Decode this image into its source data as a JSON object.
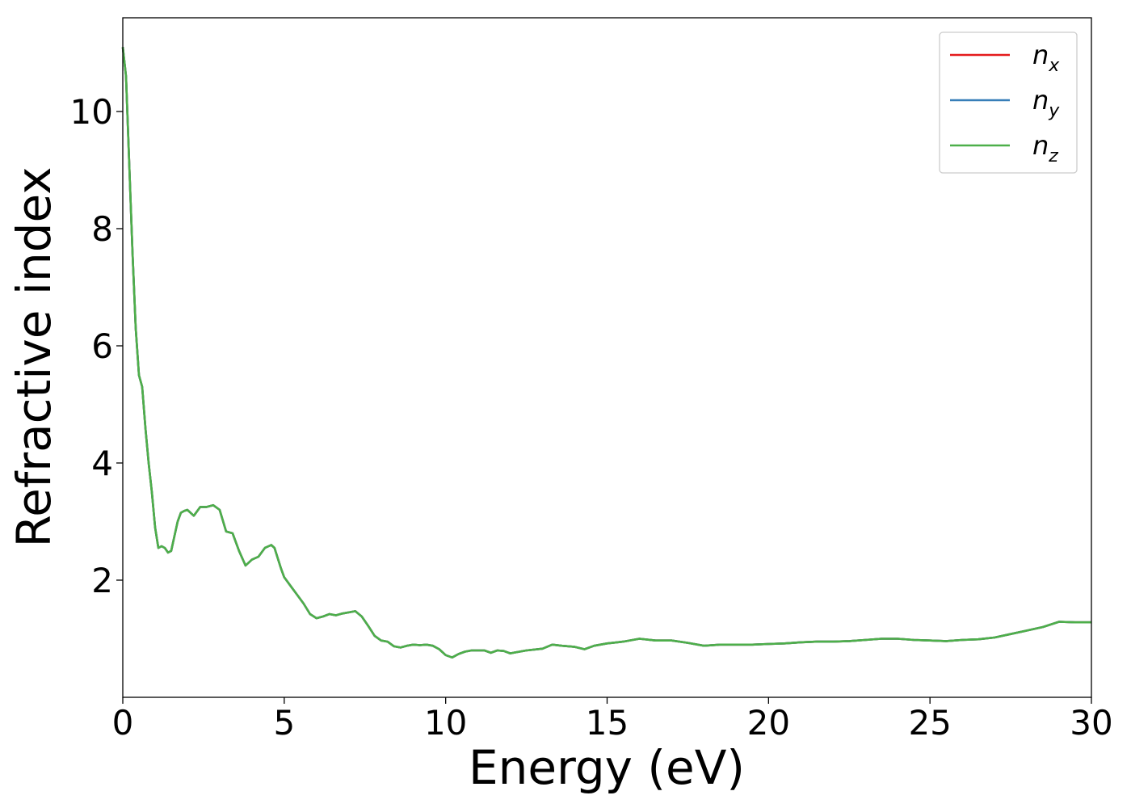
{
  "chart_data": {
    "type": "line",
    "xlabel": "Energy (eV)",
    "ylabel": "Refractive index",
    "xlim": [
      0,
      30
    ],
    "ylim": [
      0.0,
      11.6
    ],
    "xticks": [
      0,
      5,
      10,
      15,
      20,
      25,
      30
    ],
    "xtick_labels": [
      "0",
      "5",
      "10",
      "15",
      "20",
      "25",
      "30"
    ],
    "yticks": [
      2,
      4,
      6,
      8,
      10
    ],
    "ytick_labels": [
      "2",
      "4",
      "6",
      "8",
      "10"
    ],
    "grid": false,
    "legend_position": "top-right",
    "colors": {
      "n_x": "#e41a1c",
      "n_y": "#377eb8",
      "n_z": "#4daf4a"
    },
    "x": [
      0,
      0.1,
      0.2,
      0.3,
      0.4,
      0.5,
      0.6,
      0.7,
      0.8,
      0.9,
      1.0,
      1.1,
      1.2,
      1.3,
      1.4,
      1.5,
      1.6,
      1.7,
      1.8,
      1.9,
      2.0,
      2.2,
      2.4,
      2.6,
      2.8,
      3.0,
      3.2,
      3.4,
      3.6,
      3.8,
      4.0,
      4.2,
      4.4,
      4.6,
      4.7,
      4.9,
      5.0,
      5.2,
      5.4,
      5.6,
      5.8,
      6.0,
      6.2,
      6.4,
      6.6,
      6.8,
      7.0,
      7.2,
      7.4,
      7.6,
      7.8,
      8.0,
      8.2,
      8.4,
      8.6,
      8.8,
      9.0,
      9.2,
      9.4,
      9.6,
      9.8,
      10.0,
      10.2,
      10.4,
      10.6,
      10.8,
      11.0,
      11.2,
      11.4,
      11.6,
      11.8,
      12.0,
      12.5,
      13.0,
      13.3,
      13.6,
      14.0,
      14.3,
      14.6,
      15.0,
      15.5,
      16.0,
      16.5,
      17.0,
      17.5,
      18.0,
      18.5,
      19.0,
      19.5,
      20.0,
      20.5,
      21.0,
      21.5,
      22.0,
      22.5,
      23.0,
      23.5,
      24.0,
      24.5,
      25.0,
      25.5,
      26.0,
      26.5,
      27.0,
      27.5,
      28.0,
      28.5,
      29.0,
      29.5,
      30.0
    ],
    "series": [
      {
        "name": "n_x",
        "label_base": "n",
        "label_sub": "x",
        "values": [
          11.1,
          10.6,
          9.1,
          7.6,
          6.3,
          5.5,
          5.3,
          4.6,
          4.0,
          3.5,
          2.9,
          2.55,
          2.58,
          2.55,
          2.47,
          2.5,
          2.75,
          3.0,
          3.15,
          3.18,
          3.2,
          3.1,
          3.25,
          3.25,
          3.28,
          3.2,
          2.83,
          2.8,
          2.5,
          2.25,
          2.35,
          2.4,
          2.55,
          2.6,
          2.55,
          2.2,
          2.05,
          1.9,
          1.75,
          1.6,
          1.42,
          1.35,
          1.38,
          1.42,
          1.4,
          1.43,
          1.45,
          1.47,
          1.38,
          1.22,
          1.05,
          0.97,
          0.95,
          0.87,
          0.85,
          0.88,
          0.9,
          0.89,
          0.9,
          0.88,
          0.82,
          0.72,
          0.68,
          0.74,
          0.78,
          0.8,
          0.8,
          0.8,
          0.76,
          0.8,
          0.79,
          0.75,
          0.8,
          0.83,
          0.9,
          0.88,
          0.86,
          0.82,
          0.88,
          0.92,
          0.95,
          1.0,
          0.97,
          0.97,
          0.93,
          0.88,
          0.9,
          0.9,
          0.9,
          0.91,
          0.92,
          0.94,
          0.95,
          0.95,
          0.96,
          0.98,
          1.0,
          1.0,
          0.98,
          0.97,
          0.96,
          0.98,
          0.99,
          1.02,
          1.08,
          1.14,
          1.2,
          1.29,
          1.28,
          1.28
        ]
      },
      {
        "name": "n_y",
        "label_base": "n",
        "label_sub": "y",
        "values": [
          11.1,
          10.6,
          9.1,
          7.6,
          6.3,
          5.5,
          5.3,
          4.6,
          4.0,
          3.5,
          2.9,
          2.55,
          2.58,
          2.55,
          2.47,
          2.5,
          2.75,
          3.0,
          3.15,
          3.18,
          3.2,
          3.1,
          3.25,
          3.25,
          3.28,
          3.2,
          2.83,
          2.8,
          2.5,
          2.25,
          2.35,
          2.4,
          2.55,
          2.6,
          2.55,
          2.2,
          2.05,
          1.9,
          1.75,
          1.6,
          1.42,
          1.35,
          1.38,
          1.42,
          1.4,
          1.43,
          1.45,
          1.47,
          1.38,
          1.22,
          1.05,
          0.97,
          0.95,
          0.87,
          0.85,
          0.88,
          0.9,
          0.89,
          0.9,
          0.88,
          0.82,
          0.72,
          0.68,
          0.74,
          0.78,
          0.8,
          0.8,
          0.8,
          0.76,
          0.8,
          0.79,
          0.75,
          0.8,
          0.83,
          0.9,
          0.88,
          0.86,
          0.82,
          0.88,
          0.92,
          0.95,
          1.0,
          0.97,
          0.97,
          0.93,
          0.88,
          0.9,
          0.9,
          0.9,
          0.91,
          0.92,
          0.94,
          0.95,
          0.95,
          0.96,
          0.98,
          1.0,
          1.0,
          0.98,
          0.97,
          0.96,
          0.98,
          0.99,
          1.02,
          1.08,
          1.14,
          1.2,
          1.29,
          1.28,
          1.28
        ]
      },
      {
        "name": "n_z",
        "label_base": "n",
        "label_sub": "z",
        "values": [
          11.1,
          10.6,
          9.1,
          7.6,
          6.3,
          5.5,
          5.3,
          4.6,
          4.0,
          3.5,
          2.9,
          2.55,
          2.58,
          2.55,
          2.47,
          2.5,
          2.75,
          3.0,
          3.15,
          3.18,
          3.2,
          3.1,
          3.25,
          3.25,
          3.28,
          3.2,
          2.83,
          2.8,
          2.5,
          2.25,
          2.35,
          2.4,
          2.55,
          2.6,
          2.55,
          2.2,
          2.05,
          1.9,
          1.75,
          1.6,
          1.42,
          1.35,
          1.38,
          1.42,
          1.4,
          1.43,
          1.45,
          1.47,
          1.38,
          1.22,
          1.05,
          0.97,
          0.95,
          0.87,
          0.85,
          0.88,
          0.9,
          0.89,
          0.9,
          0.88,
          0.82,
          0.72,
          0.68,
          0.74,
          0.78,
          0.8,
          0.8,
          0.8,
          0.76,
          0.8,
          0.79,
          0.75,
          0.8,
          0.83,
          0.9,
          0.88,
          0.86,
          0.82,
          0.88,
          0.92,
          0.95,
          1.0,
          0.97,
          0.97,
          0.93,
          0.88,
          0.9,
          0.9,
          0.9,
          0.91,
          0.92,
          0.94,
          0.95,
          0.95,
          0.96,
          0.98,
          1.0,
          1.0,
          0.98,
          0.97,
          0.96,
          0.98,
          0.99,
          1.02,
          1.08,
          1.14,
          1.2,
          1.29,
          1.28,
          1.28
        ]
      }
    ]
  }
}
